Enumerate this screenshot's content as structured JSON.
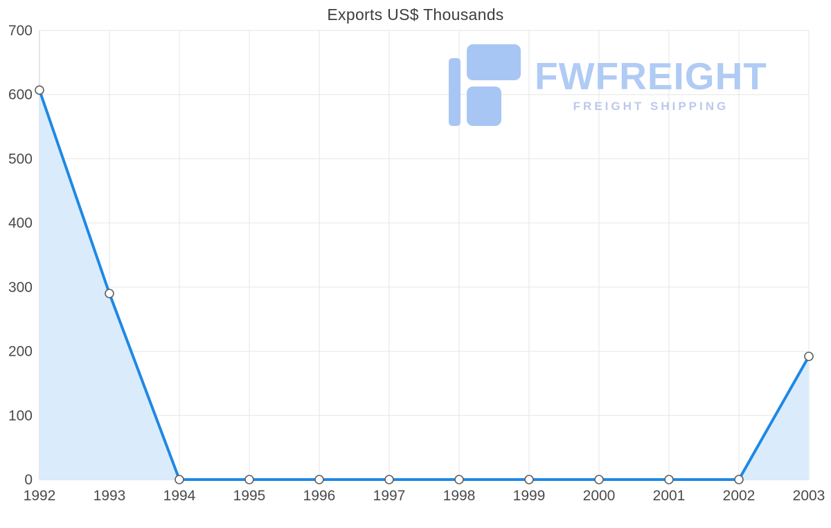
{
  "chart_data": {
    "type": "area",
    "title": "Exports US$ Thousands",
    "x": [
      "1992",
      "1993",
      "1994",
      "1995",
      "1996",
      "1997",
      "1998",
      "1999",
      "2000",
      "2001",
      "2002",
      "2003"
    ],
    "values": [
      607,
      290,
      0,
      0,
      0,
      0,
      0,
      0,
      0,
      0,
      0,
      192
    ],
    "xlabel": "",
    "ylabel": "",
    "ylim": [
      0,
      700
    ],
    "yticks": [
      0,
      100,
      200,
      300,
      400,
      500,
      600,
      700
    ],
    "grid": true,
    "legend": false,
    "line_color": "#1e88e5",
    "area_color": "#daecfb",
    "marker_fill": "#ffffff",
    "marker_stroke": "#5f5f5f",
    "grid_color": "#e6e6e6",
    "axis_color": "#cccccc",
    "tick_color": "#4a4a4a"
  },
  "watermark": {
    "brand": "FWFREIGHT",
    "tagline": "FREIGHT SHIPPING",
    "brand_color": "#b0cbf4",
    "tagline_color": "#bcc8ec",
    "logo_color": "#a7c6f4"
  }
}
